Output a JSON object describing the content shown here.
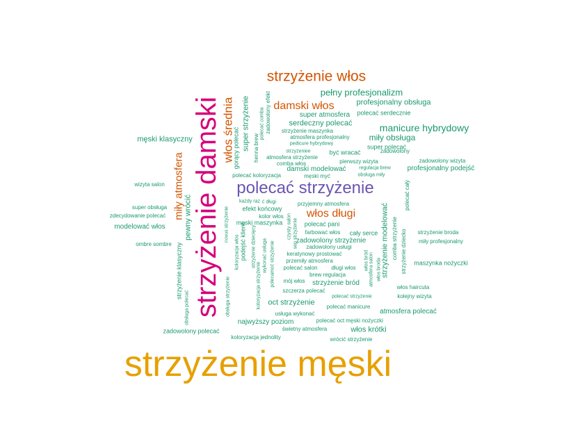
{
  "colors": {
    "gold": "#e6a000",
    "magenta": "#d6007a",
    "purple": "#6a55b0",
    "orange": "#d35400",
    "green": "#1a9a6c"
  },
  "words": [
    "strzyżenie męski",
    "strzyżenie damski",
    "polecać strzyżenie",
    "strzyżenie włos",
    "włos średnia",
    "damski włos",
    "włos długi",
    "miły atmosfera",
    "pełny profesjonalizm",
    "manicure hybrydowy",
    "profesjonalny obsługa",
    "miły obsługa",
    "serdeczny polecać",
    "super atmosfera",
    "polecać serdecznie",
    "męski klasyczny",
    "wizyta salon",
    "super obsługa",
    "zdecydowanie polecać",
    "modelować włos",
    "ombre sombre",
    "zadowolony polecać",
    "najwyższy poziom",
    "koloryzacja jednolity",
    "świetny atmosfera",
    "usługa wykonać",
    "oct strzyżenie",
    "polecać oct",
    "męski nożyczki",
    "włos krótki",
    "wrócić strzyżenie",
    "atmosfera polecać",
    "kolejny wizyta",
    "włos haircuta",
    "maszynka nożyczki",
    "miły profesjonalny",
    "strzyżenie broda",
    "profesjonalny podejść",
    "zadowolony wizyta",
    "super polecać",
    "być wracać",
    "pierwszy wizyta",
    "regulacja brew",
    "obsługa miły",
    "męski myć",
    "damski modelować",
    "comba włos",
    "polecać koloryzacja",
    "atmosfera strzyżenie",
    "strzyżeniee",
    "pedicure hybrydowy",
    "atmosfera profesjonalny",
    "strzyżenie maszynka",
    "każdy raz",
    "efekt końcowy",
    "kolor włos",
    "męski maszynka",
    "przyjemny atmosfera",
    "polecać pani",
    "cały serce",
    "farbować włos",
    "zadowolony strzyżenie",
    "zadowolony usługi",
    "keratynowy prostować",
    "przemiły atmosfera",
    "polecać salon",
    "długi włos",
    "brew regulacja",
    "mój włos",
    "strzyżenie bród",
    "szczerza polecać",
    "polecać manicure",
    "strzyżenie modelować",
    "super strzyżenie",
    "gorący polecać",
    "pewny wrócić",
    "strzyżenie klasyczny",
    "obsługa polecać",
    "polecać całý",
    "strzyżenie dziecko",
    "comba strzyżenie",
    "henna brew",
    "polecać comba",
    "zadowolony efekt",
    "novus strzyżenie",
    "podejść klient",
    "koloryzacja włos",
    "obsługa strzyżenie",
    "koloryzacja strzyżenie",
    "strzyżenie dziecięcy",
    "wykonać usługa",
    "polecamoć strzyżenie",
    "czysty salon",
    "sep strzyżenie",
    "włos bród",
    "atmosfera salon",
    "włos broda",
    "ć długi",
    "polecać strzyżenie",
    "zadowolony"
  ]
}
